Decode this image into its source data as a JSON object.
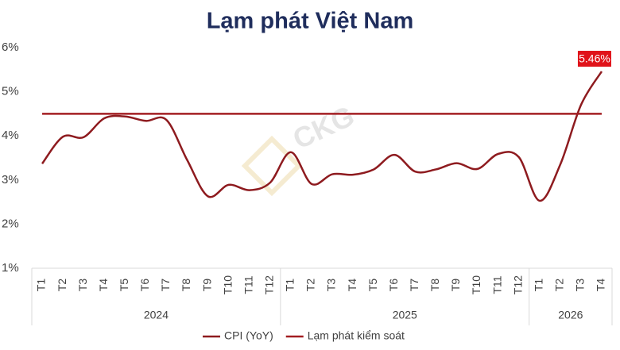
{
  "chart_data": {
    "type": "line",
    "title": "Lạm phát Việt Nam",
    "watermark": "CKG",
    "category_groups": [
      {
        "name": "2024",
        "categories": [
          "T1",
          "T2",
          "T3",
          "T4",
          "T5",
          "T6",
          "T7",
          "T8",
          "T9",
          "T10",
          "T11",
          "T12"
        ]
      },
      {
        "name": "2025",
        "categories": [
          "T1",
          "T2",
          "T3",
          "T4",
          "T5",
          "T6",
          "T7",
          "T8",
          "T9",
          "T10",
          "T11",
          "T12"
        ]
      },
      {
        "name": "2026",
        "categories": [
          "T1",
          "T2",
          "T3",
          "T4"
        ]
      }
    ],
    "series": [
      {
        "name": "CPI (YoY)",
        "color": "#8e1b1f",
        "values": [
          3.37,
          3.98,
          3.97,
          4.4,
          4.44,
          4.34,
          4.36,
          3.45,
          2.63,
          2.89,
          2.77,
          2.94,
          3.63,
          2.91,
          3.13,
          3.12,
          3.24,
          3.57,
          3.19,
          3.24,
          3.38,
          3.25,
          3.59,
          3.52,
          2.53,
          3.35,
          4.7,
          5.46
        ],
        "value_labels": [
          null,
          null,
          null,
          null,
          null,
          null,
          null,
          null,
          null,
          null,
          null,
          null,
          null,
          null,
          null,
          null,
          null,
          null,
          null,
          null,
          null,
          null,
          null,
          null,
          null,
          null,
          null,
          "5.46%"
        ]
      },
      {
        "name": "Lạm phát kiểm soát",
        "color": "#a31e22",
        "values": [
          4.5,
          4.5,
          4.5,
          4.5,
          4.5,
          4.5,
          4.5,
          4.5,
          4.5,
          4.5,
          4.5,
          4.5,
          4.5,
          4.5,
          4.5,
          4.5,
          4.5,
          4.5,
          4.5,
          4.5,
          4.5,
          4.5,
          4.5,
          4.5,
          4.5,
          4.5,
          4.5,
          4.5
        ]
      }
    ],
    "ylim": [
      1,
      6
    ],
    "yticks": [
      {
        "value": 1,
        "label": "1%"
      },
      {
        "value": 2,
        "label": "2%"
      },
      {
        "value": 3,
        "label": "3%"
      },
      {
        "value": 4,
        "label": "4%"
      },
      {
        "value": 5,
        "label": "5%"
      },
      {
        "value": 6,
        "label": "6%"
      }
    ],
    "label_color": "#e0131a",
    "grid": false
  }
}
